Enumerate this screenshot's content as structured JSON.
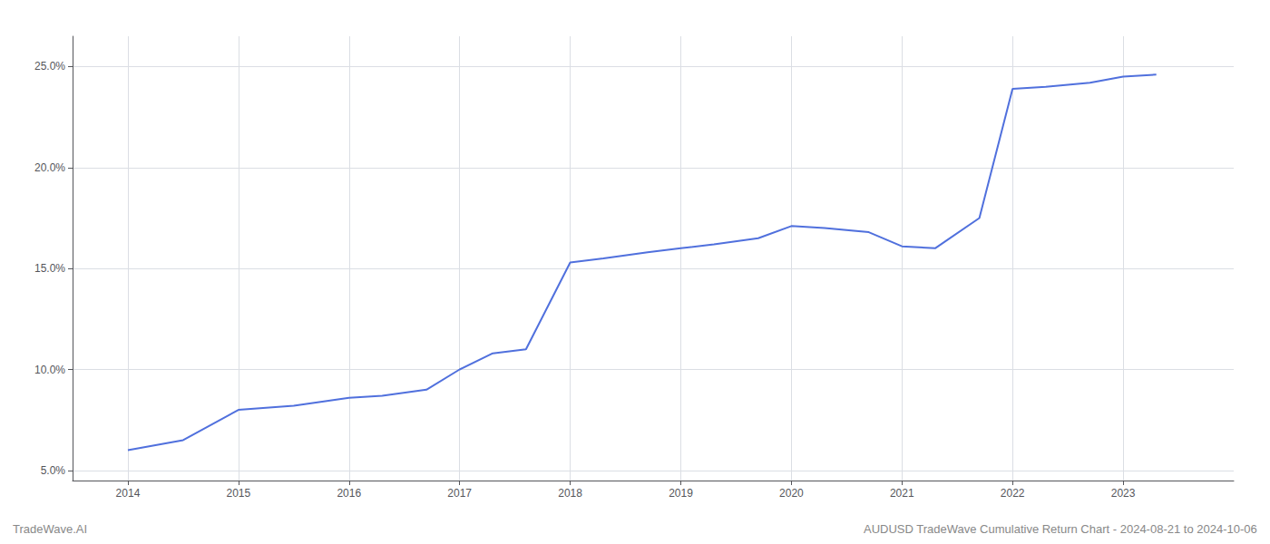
{
  "chart_data": {
    "type": "line",
    "x": [
      2014,
      2014.5,
      2015,
      2015.5,
      2016,
      2016.3,
      2016.7,
      2017,
      2017.3,
      2017.6,
      2018,
      2018.3,
      2018.7,
      2019,
      2019.3,
      2019.7,
      2020,
      2020.3,
      2020.7,
      2021,
      2021.3,
      2021.7,
      2022,
      2022.3,
      2022.7,
      2023,
      2023.3
    ],
    "values": [
      6.0,
      6.5,
      8.0,
      8.2,
      8.6,
      8.7,
      9.0,
      10.0,
      10.8,
      11.0,
      15.3,
      15.5,
      15.8,
      16.0,
      16.2,
      16.5,
      17.1,
      17.0,
      16.8,
      16.1,
      16.0,
      17.5,
      23.9,
      24.0,
      24.2,
      24.5,
      24.6
    ],
    "xlim": [
      2013.5,
      2024.0
    ],
    "xticks": [
      2014,
      2015,
      2016,
      2017,
      2018,
      2019,
      2020,
      2021,
      2022,
      2023
    ],
    "ylim": [
      4.5,
      26.5
    ],
    "yticks": [
      {
        "value": 5.0,
        "label": "5.0%"
      },
      {
        "value": 10.0,
        "label": "10.0%"
      },
      {
        "value": 15.0,
        "label": "15.0%"
      },
      {
        "value": 20.0,
        "label": "20.0%"
      },
      {
        "value": 25.0,
        "label": "25.0%"
      }
    ],
    "grid": true,
    "annotations": [
      "TradeWave.AI",
      "AUDUSD TradeWave Cumulative Return Chart - 2024-08-21 to 2024-10-06"
    ]
  }
}
